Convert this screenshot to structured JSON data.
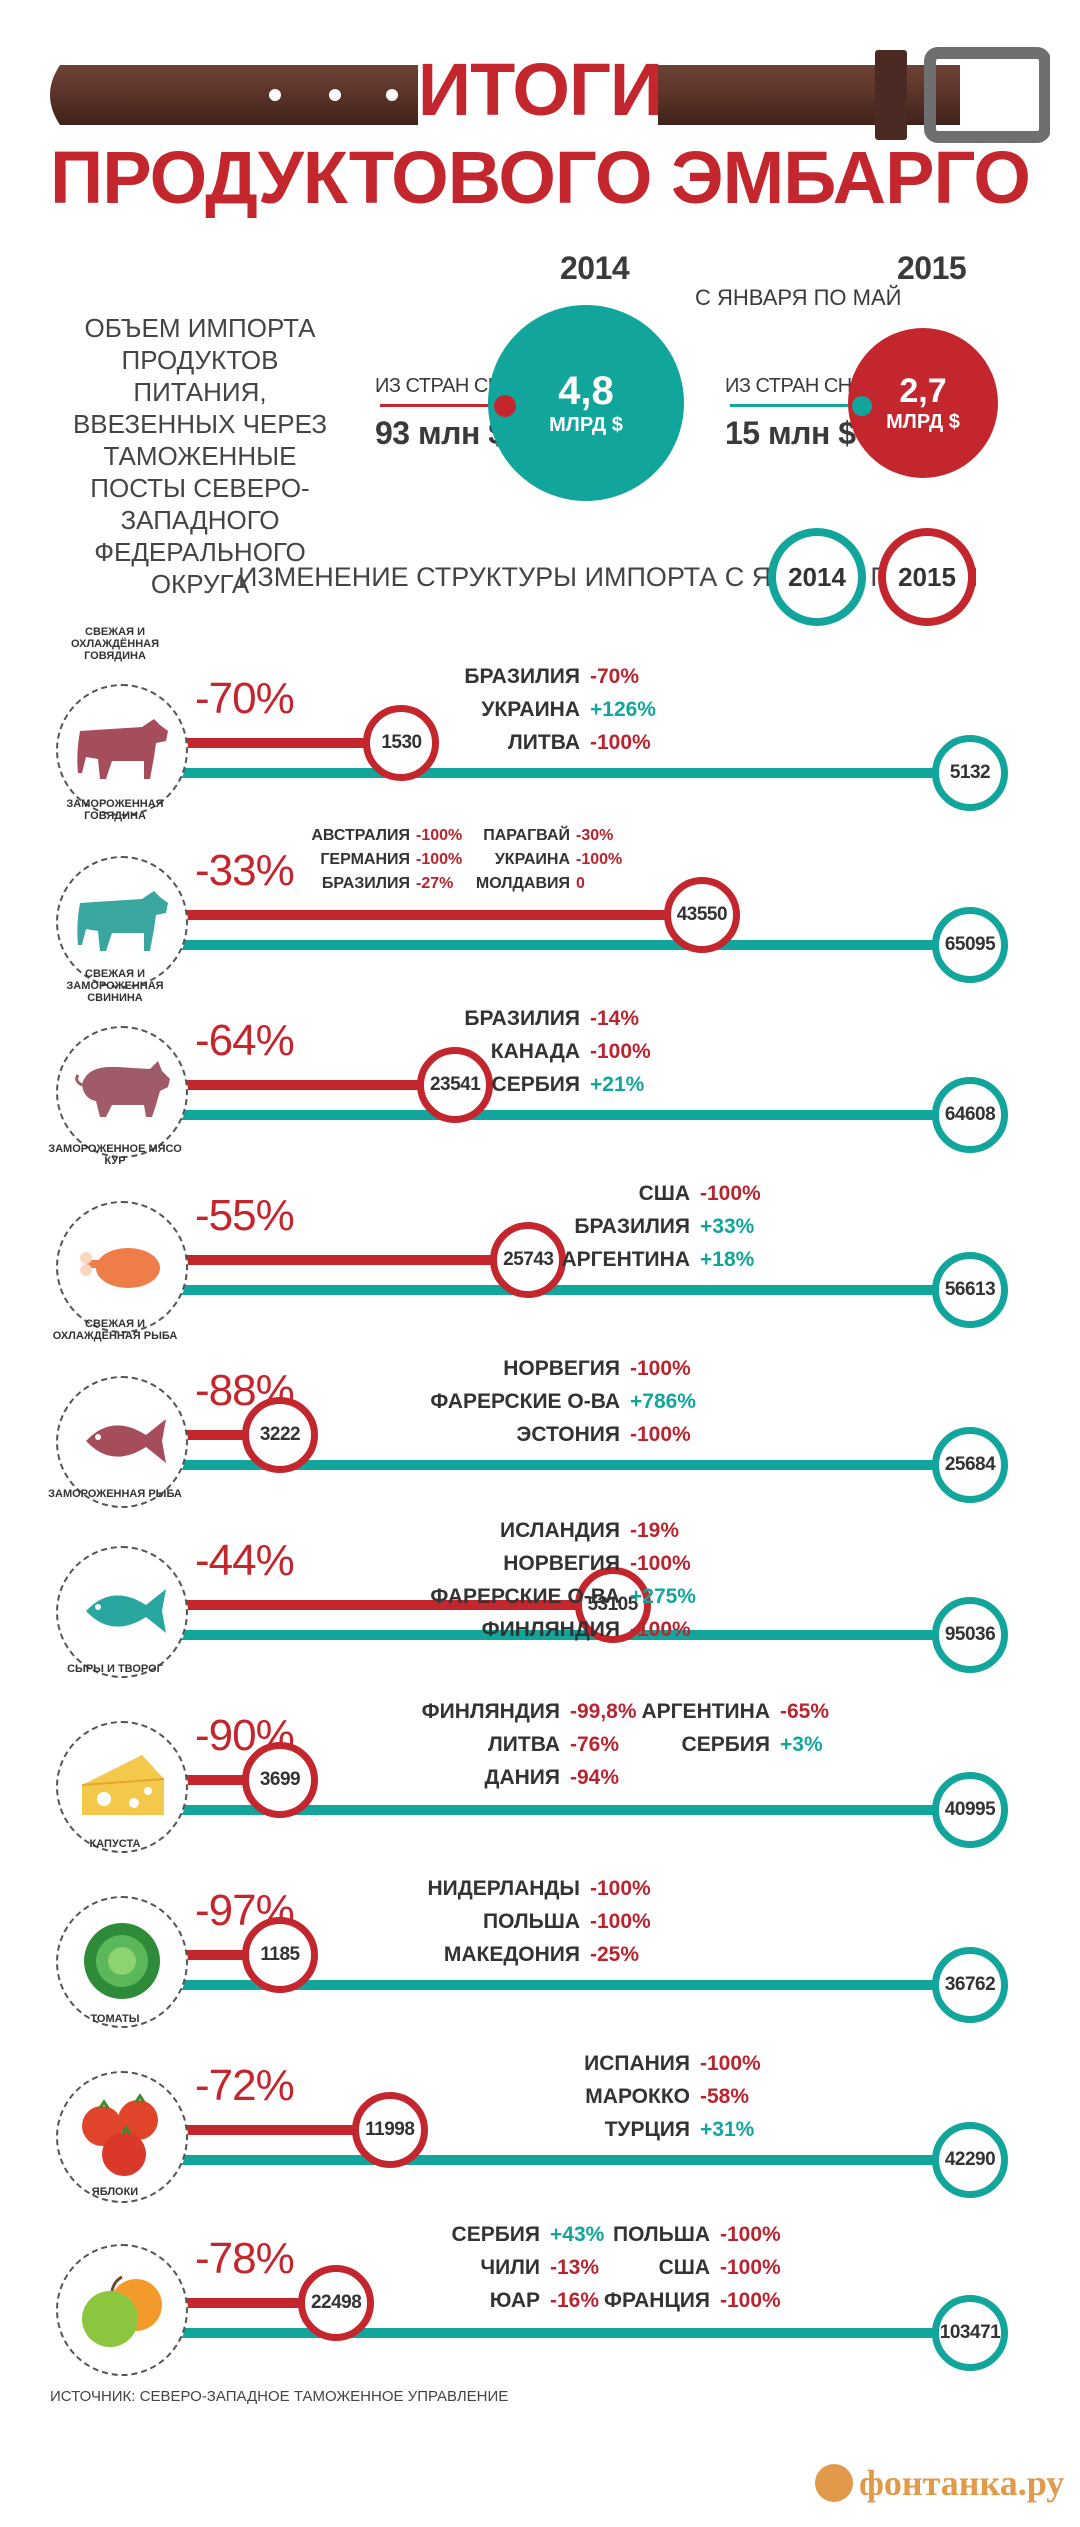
{
  "header": {
    "title_line1": "ИТОГИ",
    "title_line2": "ПРОДУКТОВОГО ЭМБАРГО",
    "intro": "ОБЪЕМ ИМПОРТА ПРОДУКТОВ ПИТАНИЯ, ВВЕЗЕННЫХ ЧЕРЕЗ ТАМОЖЕННЫЕ ПОСТЫ СЕВЕРО-ЗАПАДНОГО ФЕДЕРАЛЬНОГО ОКРУГА",
    "year_2014": "2014",
    "year_2015": "2015",
    "period": "С ЯНВАРЯ ПО МАЙ",
    "cis_label_2014": "ИЗ СТРАН СНГ",
    "cis_value_2014": "93 млн $",
    "total_2014_value": "4,8",
    "total_2014_unit": "МЛРД $",
    "cis_label_2015": "ИЗ СТРАН СНГ",
    "cis_value_2015": "15 млн $",
    "total_2015_value": "2,7",
    "total_2015_unit": "МЛРД $",
    "structure_title": "ИЗМЕНЕНИЕ СТРУКТУРЫ ИМПОРТА С ЯНВАРЯ ПО МАЙ",
    "legend_2014": "2014",
    "legend_2015": "2015"
  },
  "colors": {
    "red": "#c4262e",
    "teal": "#12a59b",
    "text": "#333333"
  },
  "rows": [
    {
      "category": "СВЕЖАЯ И ОХЛАЖДЁННАЯ ГОВЯДИНА",
      "icon": "cow-icon",
      "pct": "-70%",
      "v2015": "1530",
      "v2014": "5132",
      "countries": [
        {
          "name": "БРАЗИЛИЯ",
          "val": "-70%",
          "pos": false
        },
        {
          "name": "УКРАИНА",
          "val": "+126%",
          "pos": true
        },
        {
          "name": "ЛИТВА",
          "val": "-100%",
          "pos": false
        }
      ]
    },
    {
      "category": "ЗАМОРОЖЕННАЯ ГОВЯДИНА",
      "icon": "cow-icon",
      "pct": "-33%",
      "v2015": "43550",
      "v2014": "65095",
      "countries": [
        {
          "name": "АВСТРАЛИЯ",
          "val": "-100%",
          "pos": false
        },
        {
          "name": "ГЕРМАНИЯ",
          "val": "-100%",
          "pos": false
        },
        {
          "name": "БРАЗИЛИЯ",
          "val": "-27%",
          "pos": false
        }
      ],
      "countries2": [
        {
          "name": "ПАРАГВАЙ",
          "val": "-30%",
          "pos": false
        },
        {
          "name": "УКРАИНА",
          "val": "-100%",
          "pos": false
        },
        {
          "name": "МОЛДАВИЯ",
          "val": "0",
          "pos": false
        }
      ]
    },
    {
      "category": "СВЕЖАЯ И ЗАМОРОЖЕННАЯ СВИНИНА",
      "icon": "pig-icon",
      "pct": "-64%",
      "v2015": "23541",
      "v2014": "64608",
      "countries": [
        {
          "name": "БРАЗИЛИЯ",
          "val": "-14%",
          "pos": false
        },
        {
          "name": "КАНАДА",
          "val": "-100%",
          "pos": false
        },
        {
          "name": "СЕРБИЯ",
          "val": "+21%",
          "pos": true
        }
      ]
    },
    {
      "category": "ЗАМОРОЖЕННОЕ МЯСО КУР",
      "icon": "chicken-icon",
      "pct": "-55%",
      "v2015": "25743",
      "v2014": "56613",
      "countries": [
        {
          "name": "США",
          "val": "-100%",
          "pos": false
        },
        {
          "name": "БРАЗИЛИЯ",
          "val": "+33%",
          "pos": true
        },
        {
          "name": "АРГЕНТИНА",
          "val": "+18%",
          "pos": true
        }
      ]
    },
    {
      "category": "СВЕЖАЯ И ОХЛАЖДЕННАЯ РЫБА",
      "icon": "fish-icon",
      "pct": "-88%",
      "v2015": "3222",
      "v2014": "25684",
      "countries": [
        {
          "name": "НОРВЕГИЯ",
          "val": "-100%",
          "pos": false
        },
        {
          "name": "ФАРЕРСКИЕ О-ВА",
          "val": "+786%",
          "pos": true
        },
        {
          "name": "ЭСТОНИЯ",
          "val": "-100%",
          "pos": false
        }
      ]
    },
    {
      "category": "ЗАМОРОЖЕННАЯ РЫБА",
      "icon": "fish-icon",
      "pct": "-44%",
      "v2015": "53105",
      "v2014": "95036",
      "countries": [
        {
          "name": "ИСЛАНДИЯ",
          "val": "-19%",
          "pos": false
        },
        {
          "name": "НОРВЕГИЯ",
          "val": "-100%",
          "pos": false
        },
        {
          "name": "ФАРЕРСКИЕ О-ВА",
          "val": "+275%",
          "pos": true
        },
        {
          "name": "ФИНЛЯНДИЯ",
          "val": "-100%",
          "pos": false
        }
      ]
    },
    {
      "category": "СЫРЫ И ТВОРОГ",
      "icon": "cheese-icon",
      "pct": "-90%",
      "v2015": "3699",
      "v2014": "40995",
      "countries": [
        {
          "name": "ФИНЛЯНДИЯ",
          "val": "-99,8%",
          "pos": false
        },
        {
          "name": "ЛИТВА",
          "val": "-76%",
          "pos": false
        },
        {
          "name": "ДАНИЯ",
          "val": "-94%",
          "pos": false
        }
      ],
      "countries2": [
        {
          "name": "АРГЕНТИНА",
          "val": "-65%",
          "pos": false
        },
        {
          "name": "СЕРБИЯ",
          "val": "+3%",
          "pos": true
        }
      ]
    },
    {
      "category": "КАПУСТА",
      "icon": "cabbage-icon",
      "pct": "-97%",
      "v2015": "1185",
      "v2014": "36762",
      "countries": [
        {
          "name": "НИДЕРЛАНДЫ",
          "val": "-100%",
          "pos": false
        },
        {
          "name": "ПОЛЬША",
          "val": "-100%",
          "pos": false
        },
        {
          "name": "МАКЕДОНИЯ",
          "val": "-25%",
          "pos": false
        }
      ]
    },
    {
      "category": "ТОМАТЫ",
      "icon": "tomato-icon",
      "pct": "-72%",
      "v2015": "11998",
      "v2014": "42290",
      "countries": [
        {
          "name": "ИСПАНИЯ",
          "val": "-100%",
          "pos": false
        },
        {
          "name": "МАРОККО",
          "val": "-58%",
          "pos": false
        },
        {
          "name": "ТУРЦИЯ",
          "val": "+31%",
          "pos": true
        }
      ]
    },
    {
      "category": "ЯБЛОКИ",
      "icon": "apple-icon",
      "pct": "-78%",
      "v2015": "22498",
      "v2014": "103471",
      "countries": [
        {
          "name": "СЕРБИЯ",
          "val": "+43%",
          "pos": true
        },
        {
          "name": "ЧИЛИ",
          "val": "-13%",
          "pos": false
        },
        {
          "name": "ЮАР",
          "val": "-16%",
          "pos": false
        }
      ],
      "countries2": [
        {
          "name": "ПОЛЬША",
          "val": "-100%",
          "pos": false
        },
        {
          "name": "США",
          "val": "-100%",
          "pos": false
        },
        {
          "name": "ФРАНЦИЯ",
          "val": "-100%",
          "pos": false
        }
      ]
    }
  ],
  "footer": {
    "source": "ИСТОЧНИК: СЕВЕРО-ЗАПАДНОЕ ТАМОЖЕННОЕ УПРАВЛЕНИЕ",
    "logo_text": "фонтанка.ру"
  }
}
